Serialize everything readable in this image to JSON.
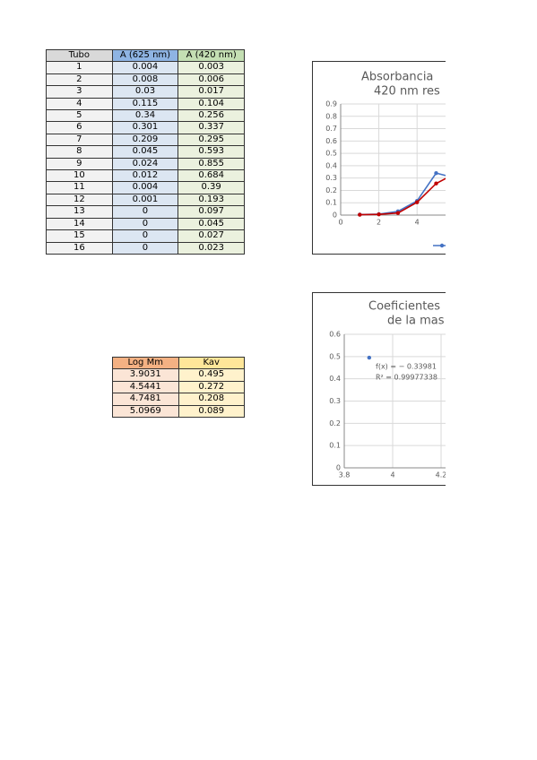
{
  "table1": {
    "header": [
      "Tubo",
      "A (625 nm)",
      "A (420 nm)"
    ],
    "rows": [
      [
        1,
        0.004,
        0.003
      ],
      [
        2,
        0.008,
        0.006
      ],
      [
        3,
        0.03,
        0.017
      ],
      [
        4,
        0.115,
        0.104
      ],
      [
        5,
        0.34,
        0.256
      ],
      [
        6,
        0.301,
        0.337
      ],
      [
        7,
        0.209,
        0.295
      ],
      [
        8,
        0.045,
        0.593
      ],
      [
        9,
        0.024,
        0.855
      ],
      [
        10,
        0.012,
        0.684
      ],
      [
        11,
        0.004,
        0.39
      ],
      [
        12,
        0.001,
        0.193
      ],
      [
        13,
        0,
        0.097
      ],
      [
        14,
        0,
        0.045
      ],
      [
        15,
        0,
        0.027
      ],
      [
        16,
        0,
        0.023
      ]
    ]
  },
  "table2": {
    "header": [
      "Log Mm",
      "Kav"
    ],
    "rows": [
      [
        3.9031,
        0.495
      ],
      [
        4.5441,
        0.272
      ],
      [
        4.7481,
        0.208
      ],
      [
        5.0969,
        0.089
      ]
    ]
  },
  "chart1": {
    "type": "line",
    "title": [
      "Absorbancia",
      "420 nm res"
    ],
    "colors": [
      "#4472c4",
      "#c00000"
    ],
    "xlim": [
      0,
      18
    ],
    "xticks": [
      0,
      2,
      4
    ],
    "ylim": [
      0,
      0.9
    ],
    "yticks": [
      0,
      0.1,
      0.2,
      0.3,
      0.4,
      0.5,
      0.6,
      0.7,
      0.8,
      0.9
    ],
    "grid": true
  },
  "chart2": {
    "type": "scatter",
    "title": [
      "Coeficientes",
      "de la mas"
    ],
    "color": "#4472c4",
    "equation": "f(x) = − 0.33981",
    "r2": "R² = 0.99977338",
    "xlim": [
      3.8,
      5.2
    ],
    "xticks": [
      3.8,
      4,
      4.2
    ],
    "ylim": [
      0,
      0.6
    ],
    "yticks": [
      0,
      0.1,
      0.2,
      0.3,
      0.4,
      0.5,
      0.6
    ],
    "grid": true
  }
}
